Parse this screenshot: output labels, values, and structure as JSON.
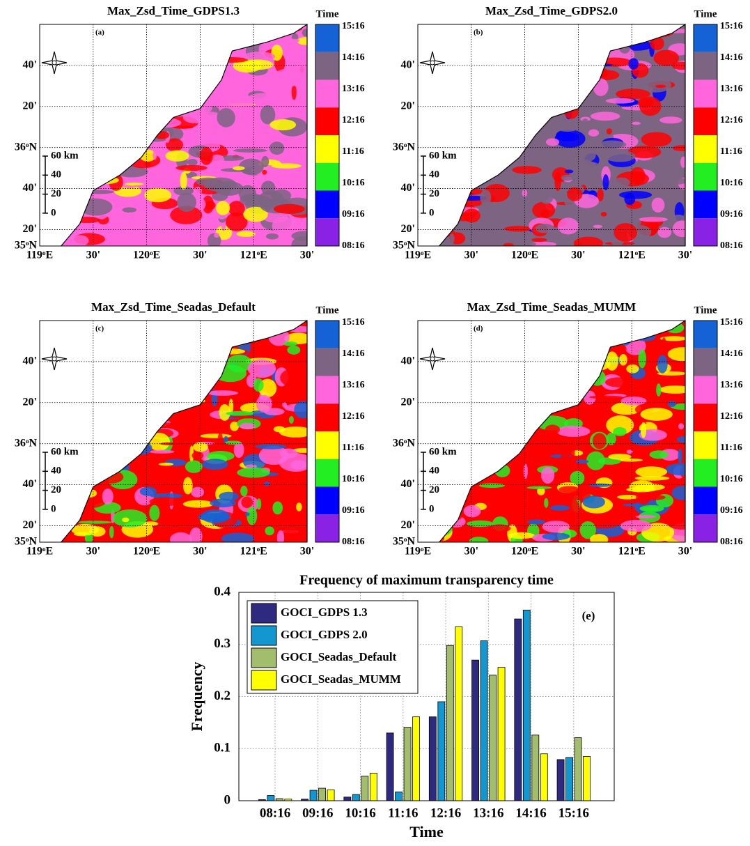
{
  "maps": [
    {
      "title": "Max_Zsd_Time_GDPS1.3",
      "label": "(a)"
    },
    {
      "title": "Max_Zsd_Time_GDPS2.0",
      "label": "(b)"
    },
    {
      "title": "Max_Zsd_Time_Seadas_Default",
      "label": "(c)"
    },
    {
      "title": "Max_Zsd_Time_Seadas_MUMM",
      "label": "(d)"
    }
  ],
  "map_axes": {
    "lat_labels": [
      "40'",
      "20'",
      "36ᵒN",
      "40'",
      "20'",
      "35ᵒN"
    ],
    "lon_labels": [
      "119ᵒE",
      "30'",
      "120ᵒE",
      "30'",
      "121ᵒE",
      "30'"
    ],
    "scale_labels": [
      "60 km",
      "40",
      "20",
      "0"
    ]
  },
  "colorbar": {
    "title": "Time",
    "labels": [
      "15:16",
      "14:16",
      "13:16",
      "12:16",
      "11:16",
      "10:16",
      "09:16",
      "08:16"
    ],
    "colors": [
      "#1462d6",
      "#7d6482",
      "#ff66dd",
      "#ff0000",
      "#ffff00",
      "#22ee22",
      "#0000ff",
      "#8a22e6"
    ]
  },
  "chart_data": {
    "type": "bar",
    "title": "Frequency of maximum transparency time",
    "annotation": "(e)",
    "x_label": "Time",
    "y_label": "Frequency",
    "categories": [
      "08:16",
      "09:16",
      "10:16",
      "11:16",
      "12:16",
      "13:16",
      "14:16",
      "15:16"
    ],
    "series": [
      {
        "name": "GOCI_GDPS 1.3",
        "color": "#2e2a80",
        "values": [
          0.002,
          0.003,
          0.007,
          0.13,
          0.161,
          0.27,
          0.349,
          0.079
        ]
      },
      {
        "name": "GOCI_GDPS 2.0",
        "color": "#1397d1",
        "values": [
          0.01,
          0.02,
          0.012,
          0.017,
          0.19,
          0.307,
          0.366,
          0.083
        ]
      },
      {
        "name": "GOCI_Seadas_Default",
        "color": "#a2bd6b",
        "values": [
          0.004,
          0.024,
          0.047,
          0.141,
          0.298,
          0.241,
          0.126,
          0.121
        ]
      },
      {
        "name": "GOCI_Seadas_MUMM",
        "color": "#ffff00",
        "values": [
          0.003,
          0.021,
          0.053,
          0.161,
          0.334,
          0.256,
          0.09,
          0.085
        ]
      }
    ],
    "ylim": [
      0,
      0.4
    ],
    "yticks": [
      0,
      0.1,
      0.2,
      0.3,
      0.4
    ],
    "grid": true,
    "legend": "upper-left"
  }
}
